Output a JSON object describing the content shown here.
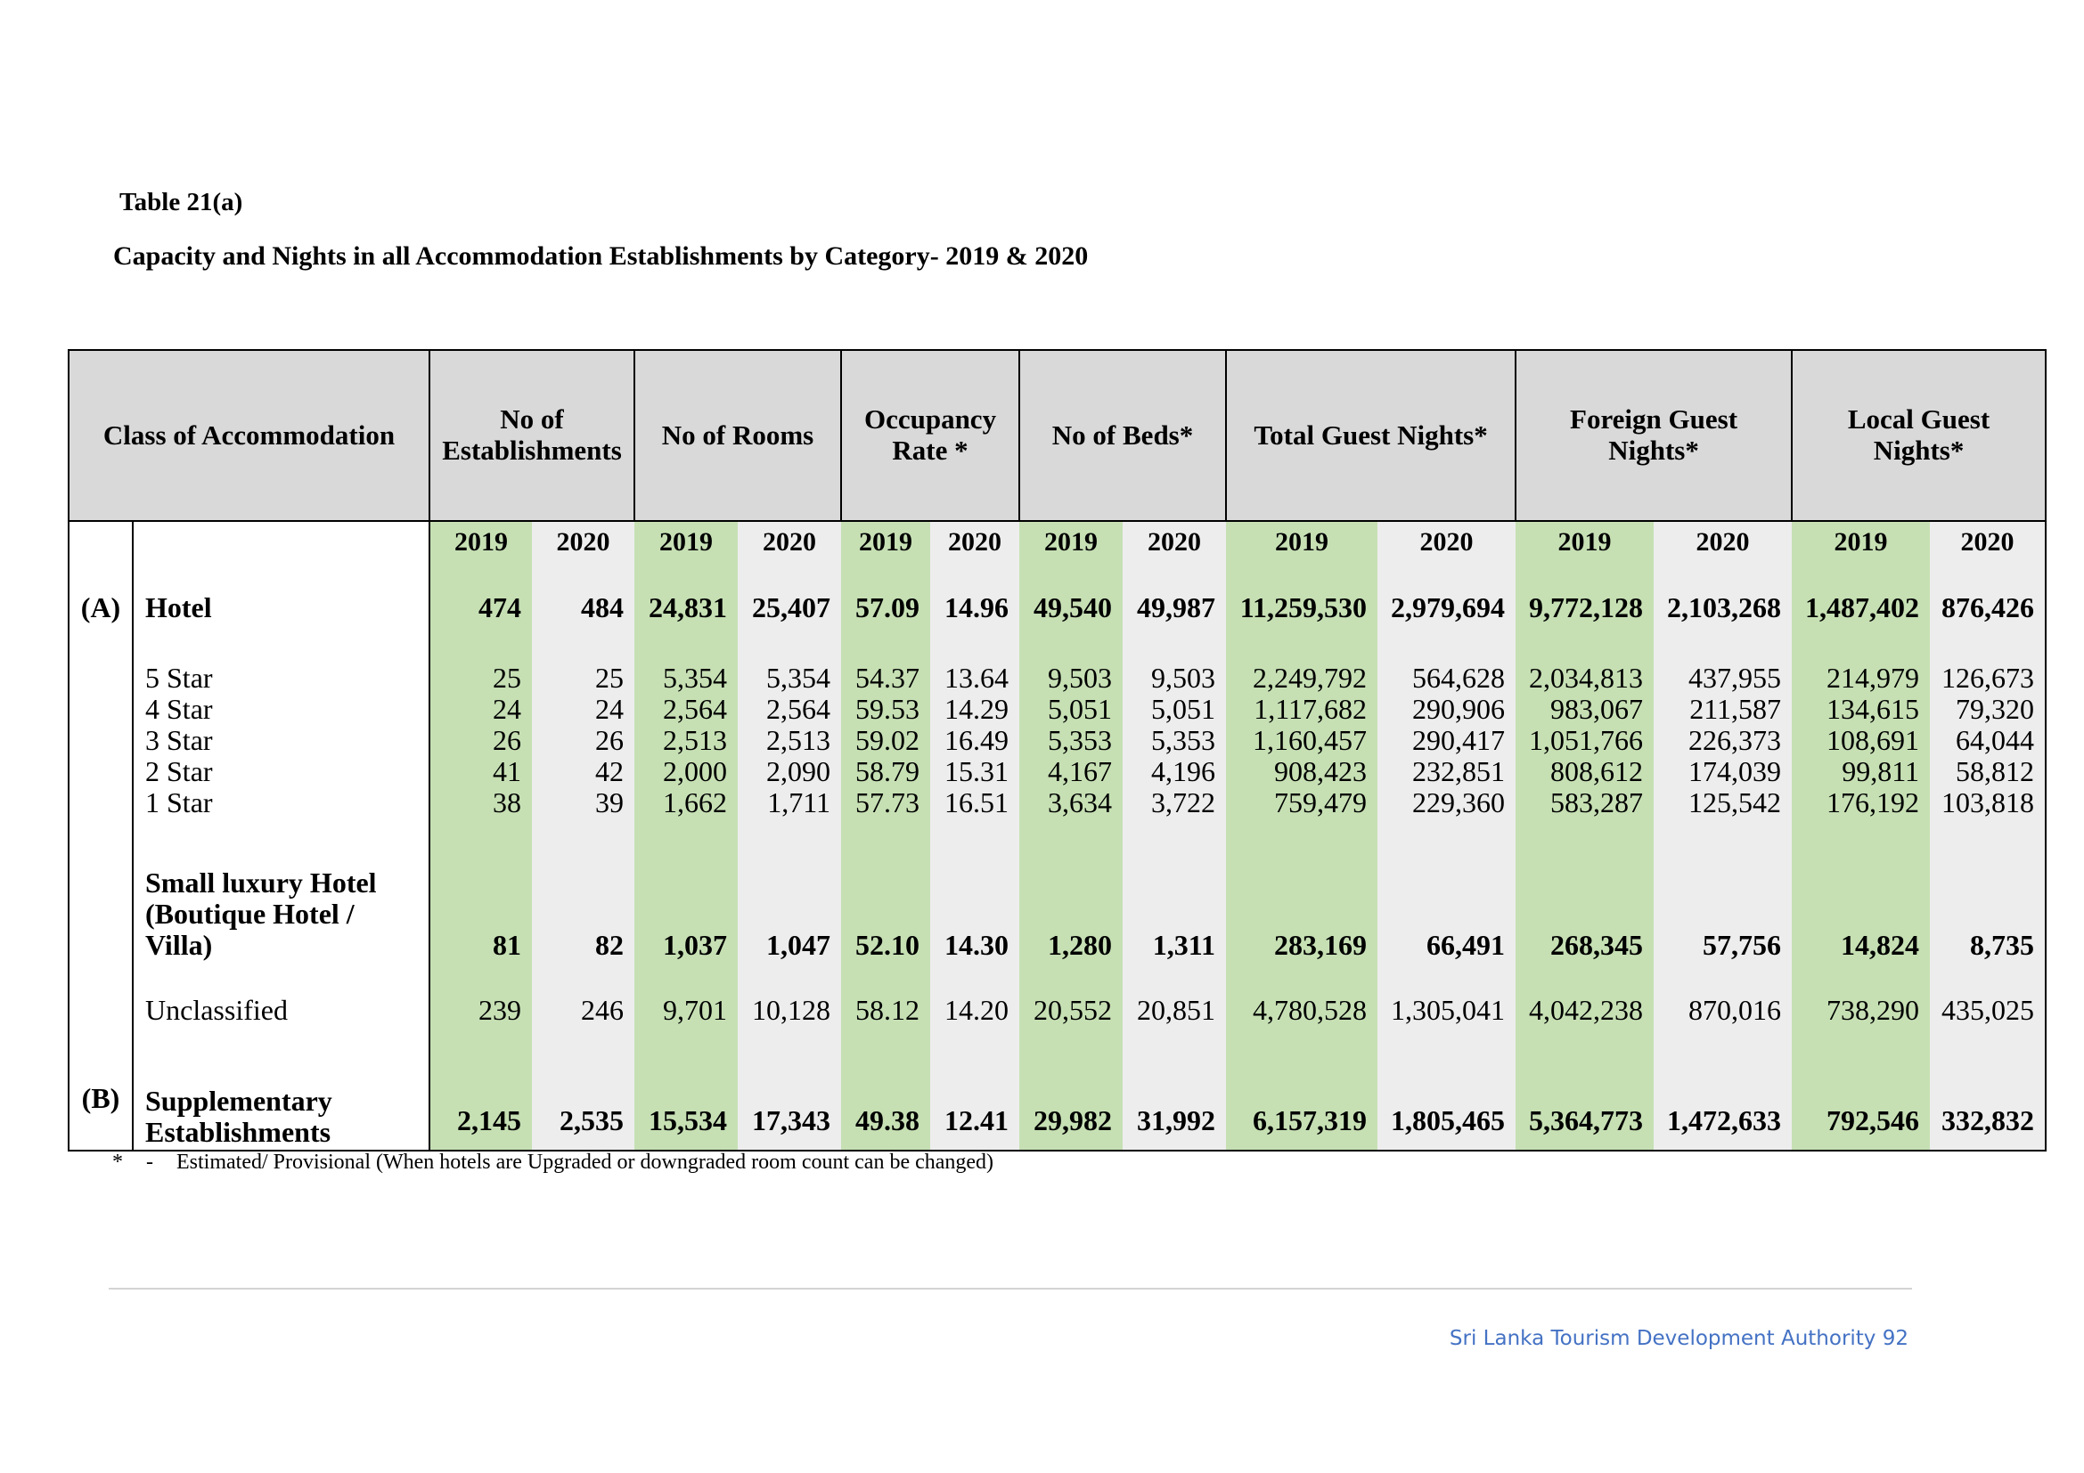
{
  "table_number": "Table 21(a)",
  "table_title": "Capacity and Nights in all Accommodation Establishments by Category- 2019 & 2020",
  "headers": {
    "class": "Class of Accommodation",
    "establishments": [
      "No of",
      "Establishments"
    ],
    "rooms": "No of Rooms",
    "occupancy": [
      "Occupancy",
      "Rate *"
    ],
    "beds": "No of Beds*",
    "total_nights": "Total Guest Nights*",
    "foreign_nights": [
      "Foreign Guest",
      "Nights*"
    ],
    "local_nights": [
      "Local Guest",
      "Nights*"
    ]
  },
  "years": [
    "2019",
    "2020"
  ],
  "rows": [
    {
      "letter": "(A)",
      "name": [
        "Hotel"
      ],
      "bold": true,
      "values": [
        "474",
        "484",
        "24,831",
        "25,407",
        "57.09",
        "14.96",
        "49,540",
        "49,987",
        "11,259,530",
        "2,979,694",
        "9,772,128",
        "2,103,268",
        "1,487,402",
        "876,426"
      ]
    },
    {
      "letter": "",
      "name": [
        "5 Star"
      ],
      "bold": false,
      "values": [
        "25",
        "25",
        "5,354",
        "5,354",
        "54.37",
        "13.64",
        "9,503",
        "9,503",
        "2,249,792",
        "564,628",
        "2,034,813",
        "437,955",
        "214,979",
        "126,673"
      ]
    },
    {
      "letter": "",
      "name": [
        "4 Star"
      ],
      "bold": false,
      "values": [
        "24",
        "24",
        "2,564",
        "2,564",
        "59.53",
        "14.29",
        "5,051",
        "5,051",
        "1,117,682",
        "290,906",
        "983,067",
        "211,587",
        "134,615",
        "79,320"
      ]
    },
    {
      "letter": "",
      "name": [
        "3 Star"
      ],
      "bold": false,
      "values": [
        "26",
        "26",
        "2,513",
        "2,513",
        "59.02",
        "16.49",
        "5,353",
        "5,353",
        "1,160,457",
        "290,417",
        "1,051,766",
        "226,373",
        "108,691",
        "64,044"
      ]
    },
    {
      "letter": "",
      "name": [
        "2 Star"
      ],
      "bold": false,
      "values": [
        "41",
        "42",
        "2,000",
        "2,090",
        "58.79",
        "15.31",
        "4,167",
        "4,196",
        "908,423",
        "232,851",
        "808,612",
        "174,039",
        "99,811",
        "58,812"
      ]
    },
    {
      "letter": "",
      "name": [
        "1 Star"
      ],
      "bold": false,
      "values": [
        "38",
        "39",
        "1,662",
        "1,711",
        "57.73",
        "16.51",
        "3,634",
        "3,722",
        "759,479",
        "229,360",
        "583,287",
        "125,542",
        "176,192",
        "103,818"
      ]
    },
    {
      "letter": "",
      "name": [
        "Small luxury Hotel",
        "(Boutique Hotel /",
        "Villa)"
      ],
      "bold": true,
      "values": [
        "81",
        "82",
        "1,037",
        "1,047",
        "52.10",
        "14.30",
        "1,280",
        "1,311",
        "283,169",
        "66,491",
        "268,345",
        "57,756",
        "14,824",
        "8,735"
      ]
    },
    {
      "letter": "",
      "name": [
        "Unclassified"
      ],
      "bold": false,
      "values": [
        "239",
        "246",
        "9,701",
        "10,128",
        "58.12",
        "14.20",
        "20,552",
        "20,851",
        "4,780,528",
        "1,305,041",
        "4,042,238",
        "870,016",
        "738,290",
        "435,025"
      ]
    },
    {
      "letter": "(B)",
      "name": [
        "Supplementary",
        "Establishments"
      ],
      "bold": true,
      "values": [
        "2,145",
        "2,535",
        "15,534",
        "17,343",
        "49.38",
        "12.41",
        "29,982",
        "31,992",
        "6,157,319",
        "1,805,465",
        "5,364,773",
        "1,472,633",
        "792,546",
        "332,832"
      ]
    }
  ],
  "footnote": {
    "symbol": "*",
    "dash": "-",
    "text": "Estimated/ Provisional (When hotels are Upgraded or downgraded room count can be changed)"
  },
  "footer_text": "Sri Lanka Tourism Development Authority 92"
}
